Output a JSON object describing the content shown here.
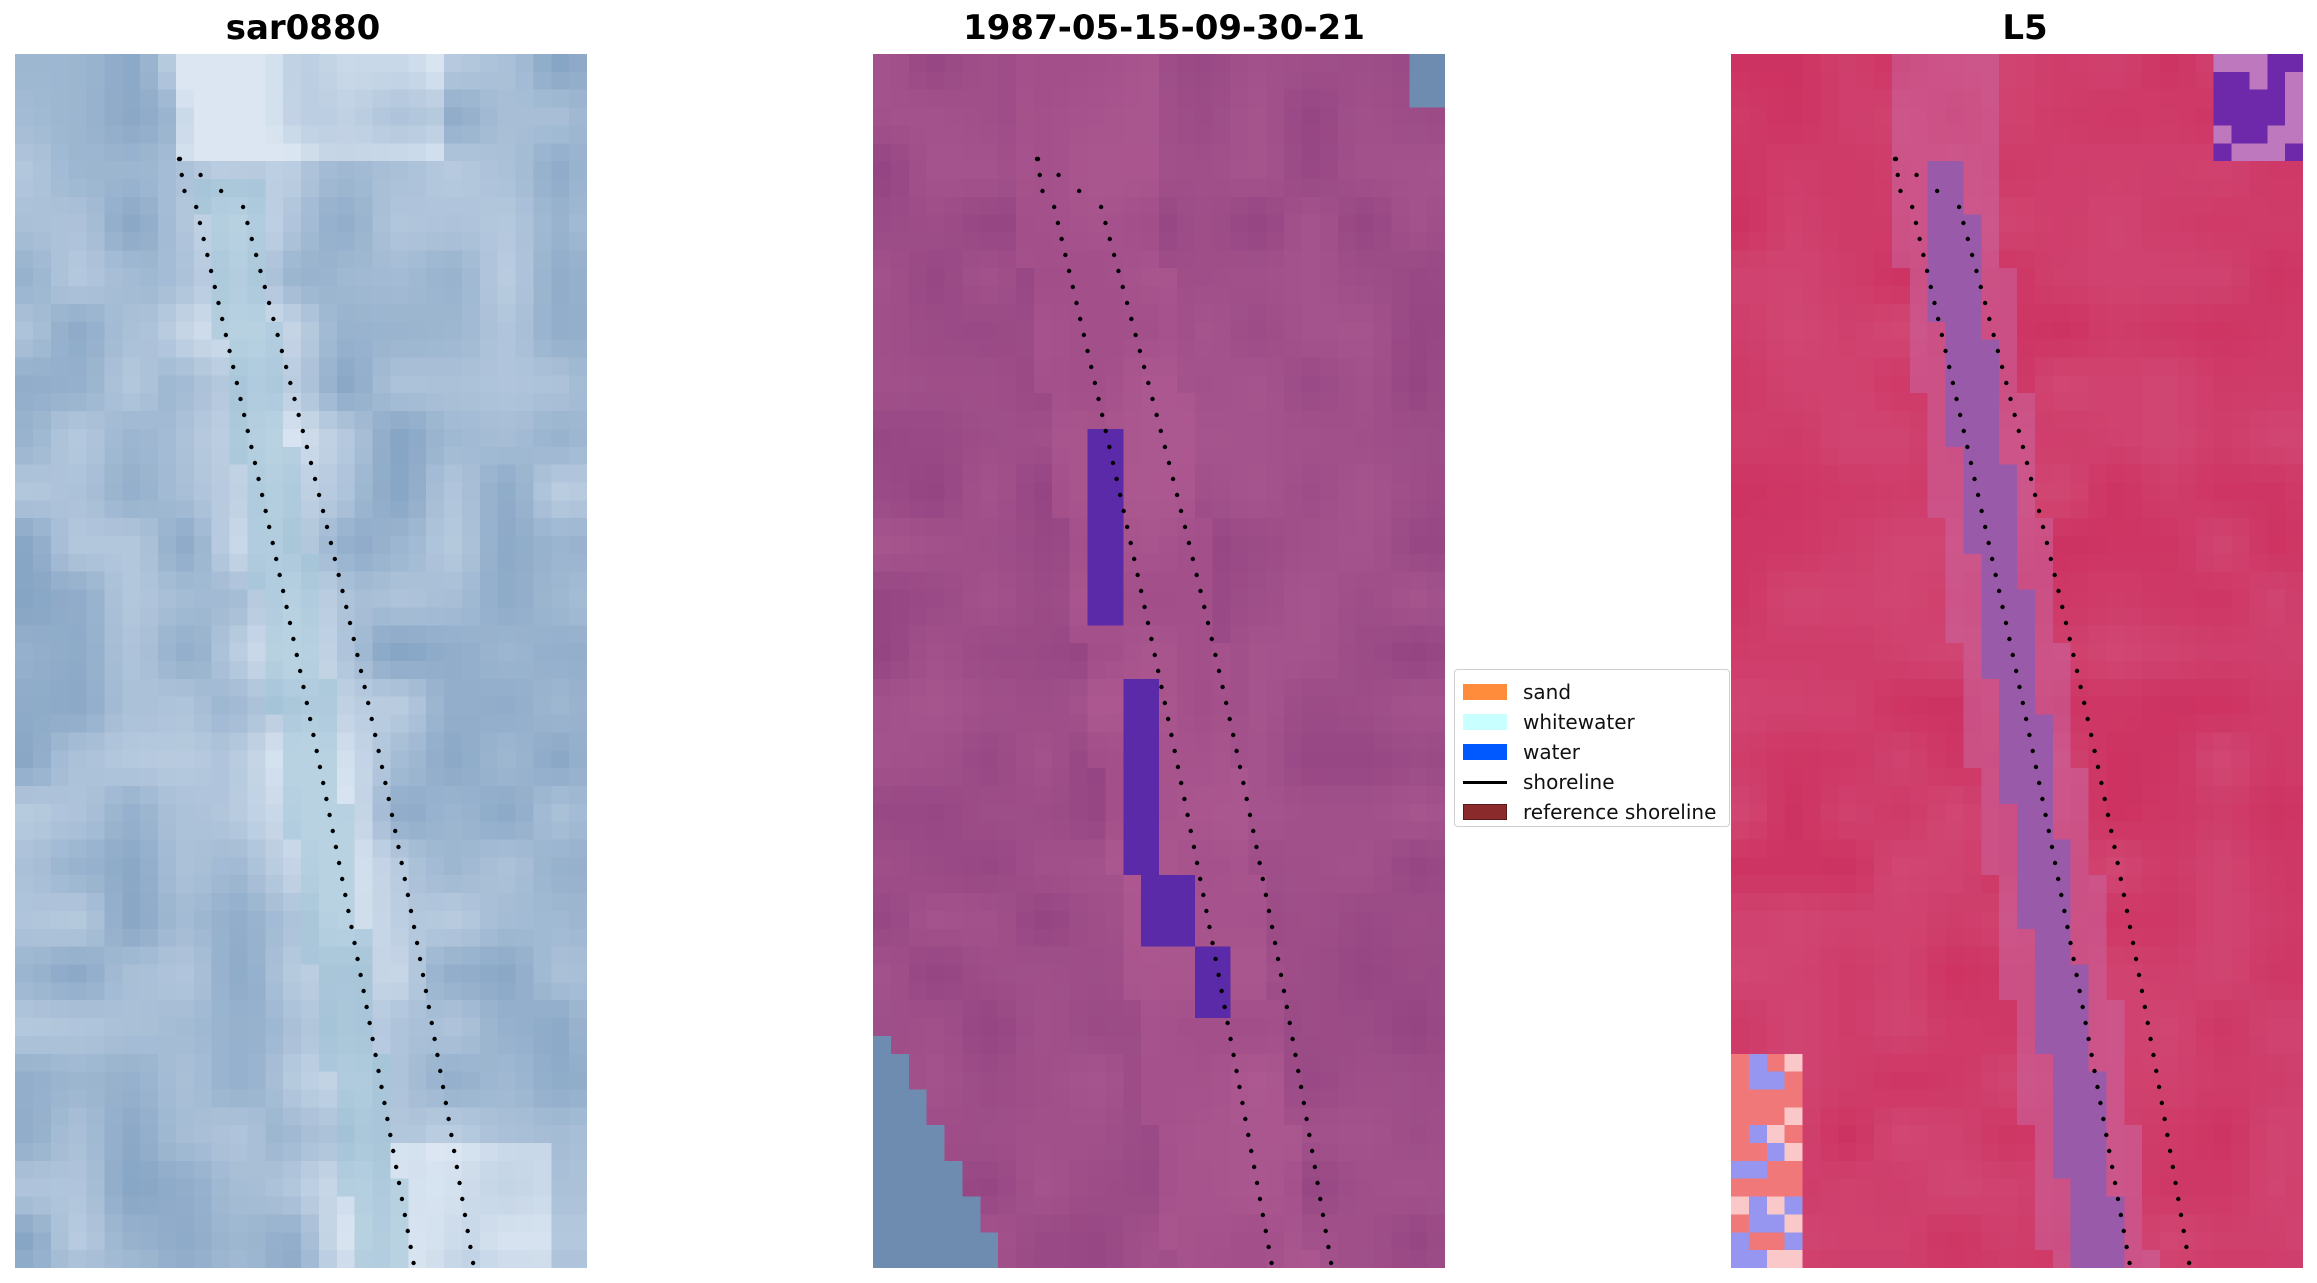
{
  "panels": [
    {
      "title": "sar0880",
      "kind": "rgb"
    },
    {
      "title": "1987-05-15-09-30-21",
      "kind": "classified"
    },
    {
      "title": "L5",
      "kind": "index"
    }
  ],
  "legend": {
    "items": [
      {
        "label": "sand",
        "type": "patch",
        "color": "#ff8c3a"
      },
      {
        "label": "whitewater",
        "type": "patch",
        "color": "#c8ffff"
      },
      {
        "label": "water",
        "type": "patch",
        "color": "#0059ff"
      },
      {
        "label": "shoreline",
        "type": "line",
        "color": "#000000"
      },
      {
        "label": "reference shoreline",
        "type": "patch",
        "color": "#8b2a2a"
      }
    ]
  },
  "colors": {
    "rgb_base": "#6a8fb5",
    "rgb_bright": "#dbe6f2",
    "classified_base": "#8a3c7c",
    "classified_water": "#5a2aa8",
    "index_base": "#cc2a5a",
    "index_channel": "#9a5aaa",
    "shoreline_dots": "#000000"
  }
}
